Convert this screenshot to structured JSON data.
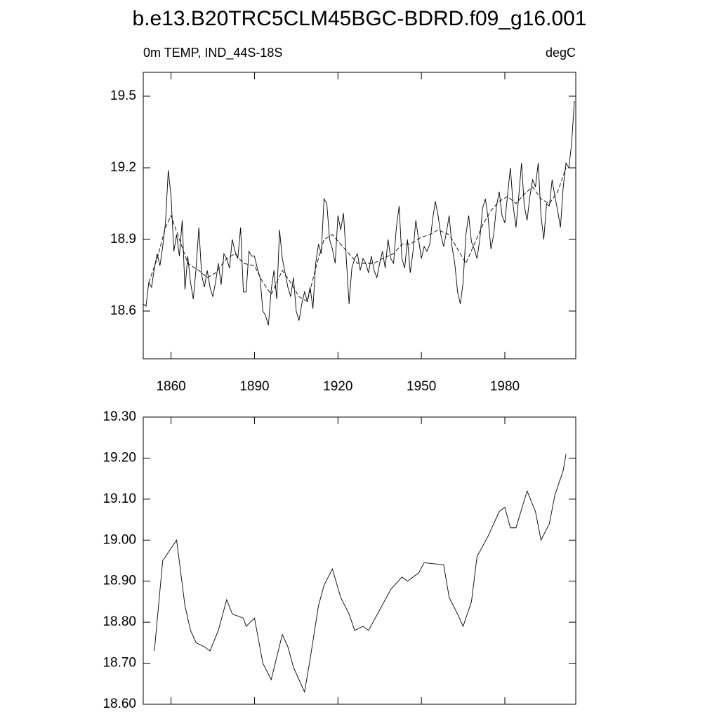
{
  "chart_data": [
    {
      "type": "line",
      "title": "b.e13.B20TRC5CLM45BGC-BDRD.f09_g16.001",
      "left_string": "0m TEMP, IND_44S-18S",
      "right_string": "degC",
      "xlim": [
        1850,
        2005.5
      ],
      "xticks": [
        1860,
        1890,
        1920,
        1950,
        1980
      ],
      "ylim": [
        18.4,
        19.6
      ],
      "yticks": [
        18.6,
        18.9,
        19.2,
        19.5
      ],
      "series": [
        {
          "color": "#000000",
          "dashed": false,
          "x": [
            1850,
            1851,
            1852,
            1853,
            1854,
            1855,
            1856,
            1857,
            1858,
            1859,
            1860,
            1861,
            1862,
            1863,
            1864,
            1865,
            1866,
            1867,
            1868,
            1869,
            1870,
            1871,
            1872,
            1873,
            1874,
            1875,
            1876,
            1877,
            1878,
            1879,
            1880,
            1881,
            1882,
            1883,
            1884,
            1885,
            1886,
            1887,
            1888,
            1889,
            1890,
            1891,
            1892,
            1893,
            1894,
            1895,
            1896,
            1897,
            1898,
            1899,
            1900,
            1901,
            1902,
            1903,
            1904,
            1905,
            1906,
            1907,
            1908,
            1909,
            1910,
            1911,
            1912,
            1913,
            1914,
            1915,
            1916,
            1917,
            1918,
            1919,
            1920,
            1921,
            1922,
            1923,
            1924,
            1925,
            1926,
            1927,
            1928,
            1929,
            1930,
            1931,
            1932,
            1933,
            1934,
            1935,
            1936,
            1937,
            1938,
            1939,
            1940,
            1941,
            1942,
            1943,
            1944,
            1945,
            1946,
            1947,
            1948,
            1949,
            1950,
            1951,
            1952,
            1953,
            1954,
            1955,
            1956,
            1957,
            1958,
            1959,
            1960,
            1961,
            1962,
            1963,
            1964,
            1965,
            1966,
            1967,
            1968,
            1969,
            1970,
            1971,
            1972,
            1973,
            1974,
            1975,
            1976,
            1977,
            1978,
            1979,
            1980,
            1981,
            1982,
            1983,
            1984,
            1985,
            1986,
            1987,
            1988,
            1989,
            1990,
            1991,
            1992,
            1993,
            1994,
            1995,
            1996,
            1997,
            1998,
            1999,
            2000,
            2001,
            2002,
            2003,
            2004,
            2005
          ],
          "values": [
            18.63,
            18.62,
            18.72,
            18.7,
            18.78,
            18.84,
            18.79,
            18.87,
            18.97,
            19.19,
            19.08,
            18.85,
            18.92,
            18.83,
            18.98,
            18.69,
            18.83,
            18.72,
            18.65,
            18.78,
            18.95,
            18.75,
            18.7,
            18.77,
            18.7,
            18.66,
            18.72,
            18.8,
            18.71,
            18.84,
            18.82,
            18.78,
            18.9,
            18.85,
            18.82,
            18.95,
            18.68,
            18.68,
            18.85,
            18.83,
            18.83,
            18.78,
            18.74,
            18.6,
            18.58,
            18.54,
            18.69,
            18.77,
            18.65,
            18.94,
            18.82,
            18.76,
            18.7,
            18.66,
            18.74,
            18.6,
            18.56,
            18.63,
            18.68,
            18.64,
            18.7,
            18.61,
            18.8,
            18.88,
            18.84,
            19.07,
            19.05,
            18.9,
            18.86,
            18.8,
            19.0,
            18.94,
            19.01,
            18.82,
            18.63,
            18.78,
            18.82,
            18.84,
            18.77,
            18.82,
            18.8,
            18.76,
            18.83,
            18.77,
            18.74,
            18.8,
            18.85,
            18.78,
            18.9,
            18.82,
            18.8,
            18.95,
            19.04,
            18.82,
            18.78,
            18.9,
            18.76,
            18.85,
            18.98,
            18.9,
            18.82,
            18.87,
            18.85,
            18.88,
            18.98,
            19.06,
            19.0,
            18.92,
            18.87,
            18.93,
            19.0,
            18.87,
            18.8,
            18.68,
            18.63,
            18.72,
            18.92,
            19.0,
            18.89,
            18.86,
            18.82,
            18.9,
            19.03,
            19.07,
            18.99,
            18.86,
            18.92,
            19.04,
            19.1,
            19.0,
            18.97,
            19.09,
            19.2,
            19.04,
            18.95,
            19.08,
            19.22,
            19.04,
            18.98,
            19.08,
            19.15,
            19.12,
            19.22,
            19.0,
            18.9,
            19.05,
            19.04,
            19.15,
            19.08,
            19.02,
            18.95,
            19.12,
            19.22,
            19.2,
            19.3,
            19.48
          ]
        },
        {
          "color": "#000000",
          "dashed": true,
          "x": [
            1852,
            1855,
            1858,
            1860,
            1863,
            1866,
            1870,
            1873,
            1876,
            1880,
            1883,
            1886,
            1890,
            1893,
            1896,
            1900,
            1903,
            1906,
            1909,
            1912,
            1915,
            1918,
            1921,
            1924,
            1927,
            1930,
            1933,
            1936,
            1940,
            1943,
            1946,
            1950,
            1953,
            1956,
            1960,
            1963,
            1966,
            1969,
            1972,
            1975,
            1978,
            1981,
            1984,
            1987,
            1990,
            1993,
            1996,
            1999,
            2002
          ],
          "values": [
            18.72,
            18.82,
            18.95,
            19.0,
            18.9,
            18.8,
            18.77,
            18.74,
            18.76,
            18.82,
            18.84,
            18.8,
            18.79,
            18.72,
            18.67,
            18.77,
            18.72,
            18.66,
            18.64,
            18.78,
            18.9,
            18.92,
            18.88,
            18.84,
            18.8,
            18.8,
            18.8,
            18.82,
            18.84,
            18.88,
            18.88,
            18.91,
            18.92,
            18.94,
            18.92,
            18.86,
            18.8,
            18.88,
            18.96,
            19.02,
            19.06,
            19.08,
            19.05,
            19.09,
            19.12,
            19.07,
            19.05,
            19.1,
            19.2
          ]
        }
      ]
    },
    {
      "type": "line",
      "xlim": [
        1850,
        2005.5
      ],
      "xticks": [
        1860,
        1890,
        1920,
        1950,
        1980
      ],
      "ylim": [
        18.6,
        19.3
      ],
      "yticks": [
        {
          "value": 18.6,
          "label": "18.60"
        },
        {
          "value": 18.7,
          "label": "18.70"
        },
        {
          "value": 18.8,
          "label": "18.80"
        },
        {
          "value": 18.9,
          "label": "18.90"
        },
        {
          "value": 19.0,
          "label": "19.00"
        },
        {
          "value": 19.1,
          "label": "19.10"
        },
        {
          "value": 19.2,
          "label": "19.20"
        },
        {
          "value": 19.3,
          "label": "19.30"
        }
      ],
      "series": [
        {
          "color": "#000000",
          "dashed": false,
          "x": [
            1854,
            1857,
            1862,
            1865,
            1867,
            1869,
            1872,
            1874,
            1877,
            1880,
            1882,
            1886,
            1887,
            1890,
            1893,
            1896,
            1900,
            1902,
            1904,
            1908,
            1910,
            1913,
            1915,
            1918,
            1921,
            1924,
            1926,
            1929,
            1931,
            1935,
            1939,
            1943,
            1945,
            1949,
            1951,
            1958,
            1960,
            1963,
            1965,
            1968,
            1970,
            1974,
            1978,
            1980,
            1982,
            1984,
            1988,
            1991,
            1993,
            1996,
            1998,
            2001,
            2002
          ],
          "values": [
            18.73,
            18.95,
            19.0,
            18.84,
            18.78,
            18.75,
            18.74,
            18.73,
            18.78,
            18.855,
            18.82,
            18.81,
            18.79,
            18.81,
            18.7,
            18.66,
            18.77,
            18.74,
            18.69,
            18.63,
            18.71,
            18.84,
            18.89,
            18.93,
            18.86,
            18.82,
            18.78,
            18.79,
            18.78,
            18.83,
            18.88,
            18.91,
            18.9,
            18.92,
            18.945,
            18.94,
            18.86,
            18.82,
            18.79,
            18.85,
            18.96,
            19.01,
            19.07,
            19.08,
            19.03,
            19.03,
            19.12,
            19.07,
            19.0,
            19.04,
            19.11,
            19.17,
            19.21
          ]
        }
      ]
    }
  ]
}
